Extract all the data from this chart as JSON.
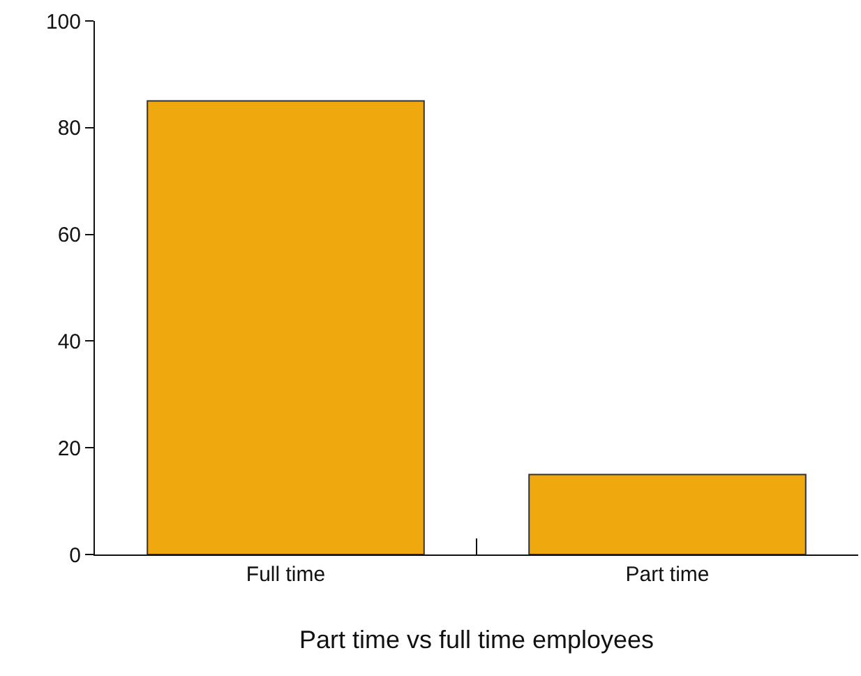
{
  "chart_data": {
    "type": "bar",
    "xlabel": "Part time vs full time employees",
    "categories": [
      "Full time",
      "Part time"
    ],
    "values": [
      85,
      15
    ],
    "color": "#f0a80f",
    "ylim": [
      0,
      100
    ],
    "yticks": [
      0,
      20,
      40,
      60,
      80,
      100
    ],
    "grid": false
  }
}
